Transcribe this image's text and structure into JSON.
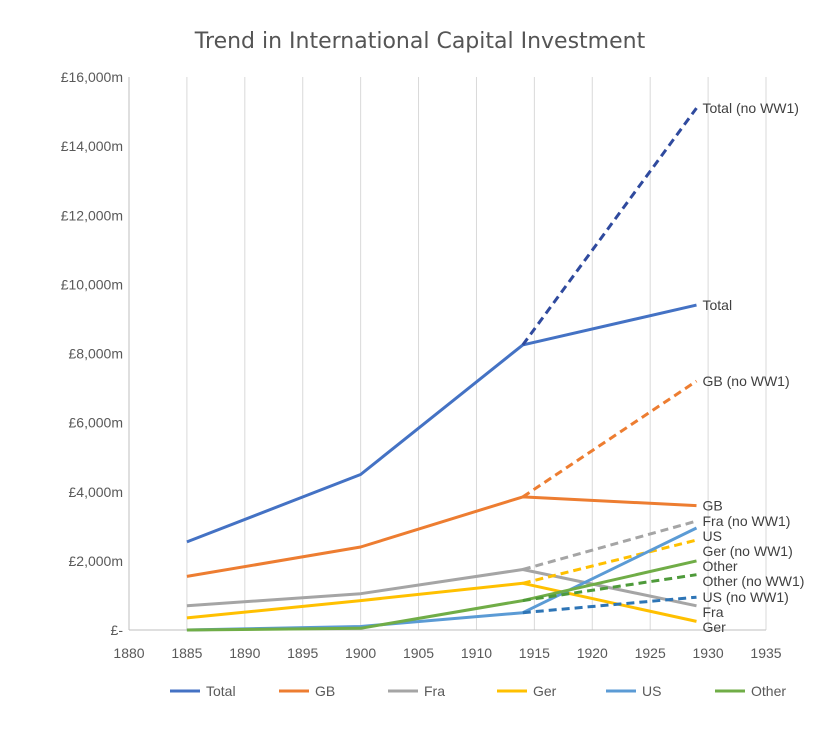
{
  "chart_data": {
    "type": "line",
    "title": "Trend in International Capital Investment",
    "xlabel": "",
    "ylabel": "",
    "xlim": [
      1880,
      1935
    ],
    "ylim": [
      0,
      16000
    ],
    "x_ticks": [
      "1880",
      "1885",
      "1890",
      "1895",
      "1900",
      "1905",
      "1910",
      "1915",
      "1920",
      "1925",
      "1930",
      "1935"
    ],
    "y_ticks": [
      "£-",
      "£2,000m",
      "£4,000m",
      "£6,000m",
      "£8,000m",
      "£10,000m",
      "£12,000m",
      "£14,000m",
      "£16,000m"
    ],
    "grid": "vertical",
    "legend_position": "bottom",
    "series": [
      {
        "name": "Total",
        "color": "#4472C4",
        "x": [
          1885,
          1900,
          1914,
          1929
        ],
        "values": [
          2550,
          4500,
          8250,
          9400
        ],
        "label": "Total"
      },
      {
        "name": "Total (no WW1)",
        "color": "#2F4A9E",
        "dashed": true,
        "x": [
          1914,
          1929
        ],
        "values": [
          8250,
          15100
        ],
        "label": "Total (no WW1)"
      },
      {
        "name": "GB",
        "color": "#ED7D31",
        "x": [
          1885,
          1900,
          1914,
          1929
        ],
        "values": [
          1550,
          2400,
          3850,
          3600
        ],
        "label": "GB"
      },
      {
        "name": "GB (no WW1)",
        "color": "#ED7D31",
        "dashed": true,
        "x": [
          1914,
          1929
        ],
        "values": [
          3850,
          7200
        ],
        "label": "GB (no WW1)"
      },
      {
        "name": "Fra",
        "color": "#A5A5A5",
        "x": [
          1885,
          1900,
          1914,
          1929
        ],
        "values": [
          700,
          1050,
          1750,
          700
        ],
        "label": "Fra"
      },
      {
        "name": "Fra (no WW1)",
        "color": "#A5A5A5",
        "dashed": true,
        "x": [
          1914,
          1929
        ],
        "values": [
          1750,
          3150
        ],
        "label": "Fra (no WW1)"
      },
      {
        "name": "Ger",
        "color": "#FFC000",
        "x": [
          1885,
          1900,
          1914,
          1929
        ],
        "values": [
          350,
          850,
          1350,
          250
        ],
        "label": "Ger"
      },
      {
        "name": "Ger (no WW1)",
        "color": "#FFC000",
        "dashed": true,
        "x": [
          1914,
          1929
        ],
        "values": [
          1350,
          2600
        ],
        "label": "Ger (no WW1)"
      },
      {
        "name": "US",
        "color": "#5B9BD5",
        "x": [
          1885,
          1900,
          1914,
          1929
        ],
        "values": [
          0,
          100,
          500,
          2950
        ],
        "label": "US"
      },
      {
        "name": "US (no WW1)",
        "color": "#2E75B6",
        "dashed": true,
        "x": [
          1914,
          1929
        ],
        "values": [
          500,
          950
        ],
        "label": "US (no WW1)"
      },
      {
        "name": "Other",
        "color": "#70AD47",
        "x": [
          1885,
          1900,
          1914,
          1929
        ],
        "values": [
          0,
          50,
          850,
          2000
        ],
        "label": "Other"
      },
      {
        "name": "Other (no WW1)",
        "color": "#4E9A3A",
        "dashed": true,
        "x": [
          1914,
          1929
        ],
        "values": [
          850,
          1600
        ],
        "label": "Other (no WW1)"
      }
    ],
    "legend": [
      {
        "name": "Total",
        "color": "#4472C4"
      },
      {
        "name": "GB",
        "color": "#ED7D31"
      },
      {
        "name": "Fra",
        "color": "#A5A5A5"
      },
      {
        "name": "Ger",
        "color": "#FFC000"
      },
      {
        "name": "US",
        "color": "#5B9BD5"
      },
      {
        "name": "Other",
        "color": "#70AD47"
      }
    ]
  }
}
